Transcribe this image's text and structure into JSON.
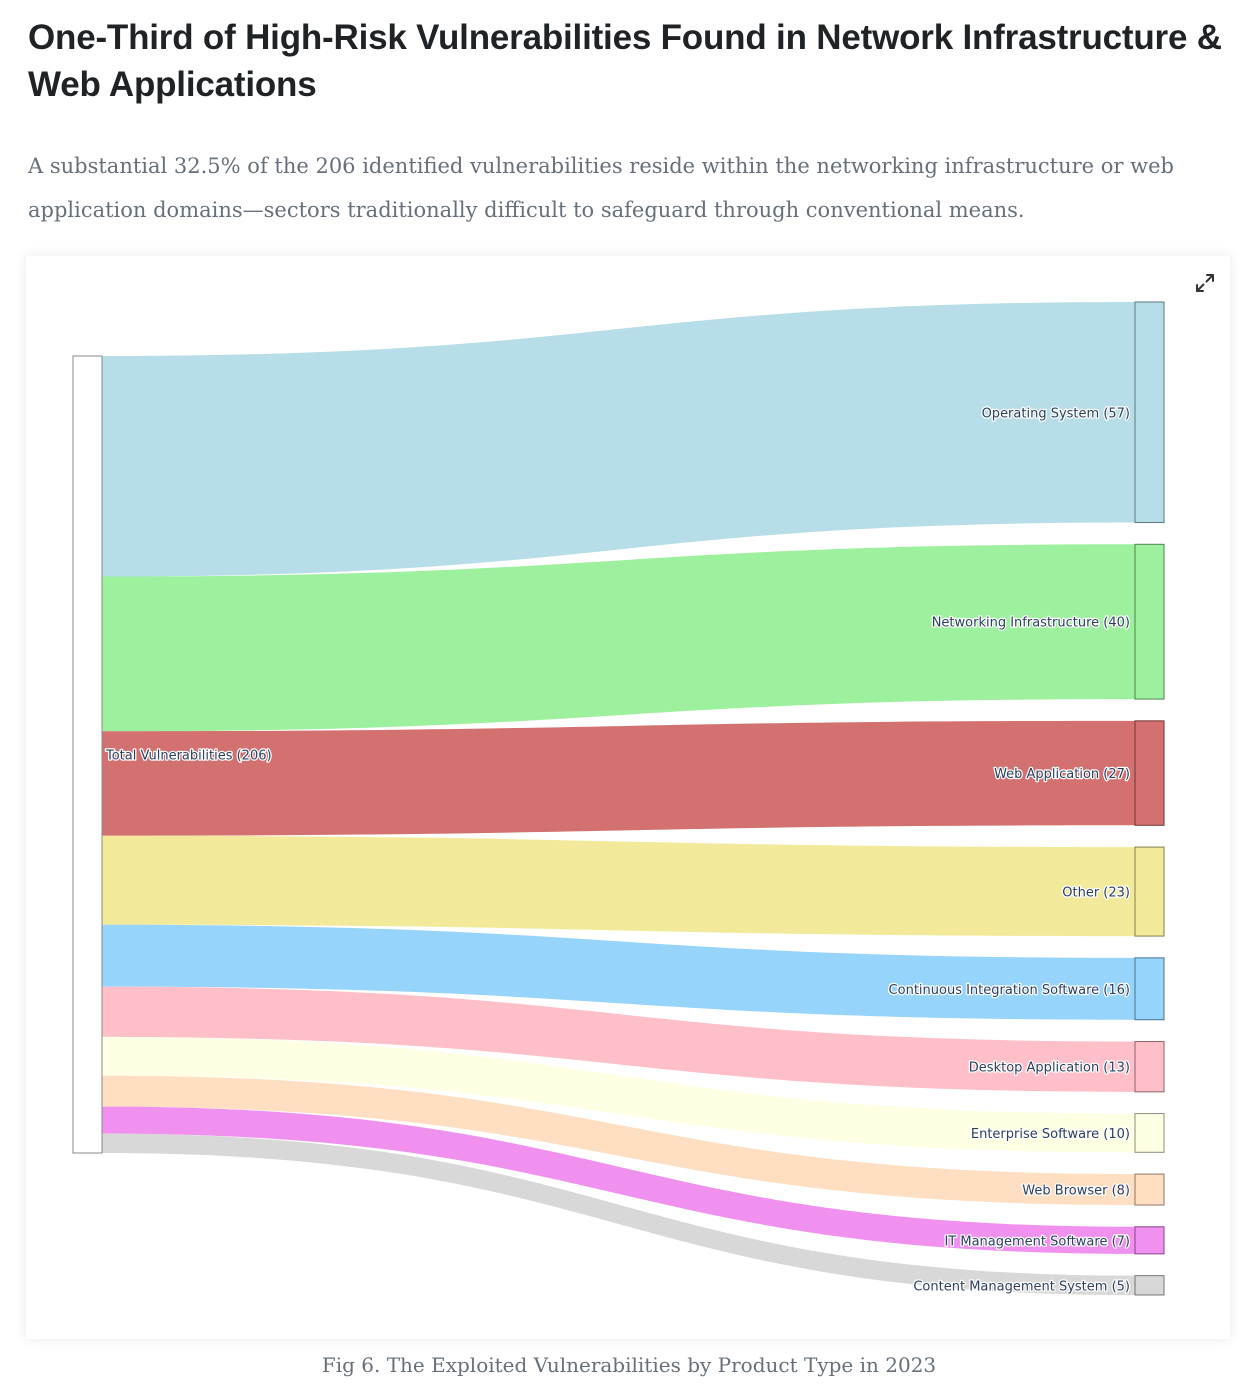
{
  "article": {
    "heading": "One-Third of High-Risk Vulnerabilities Found in Network Infrastructure & Web Applications",
    "lede": "A substantial 32.5% of the 206 identified vulnerabilities reside within the networking infrastructure or web application domains—sectors traditionally difficult to safeguard through conventional means.",
    "caption": "Fig 6. The Exploited Vulnerabilities by Product Type in 2023"
  },
  "toolbar": {
    "expand_icon": "expand-arrows-icon"
  },
  "chart_data": {
    "type": "sankey",
    "source": {
      "label": "Total Vulnerabilities (206)",
      "value": 206
    },
    "targets": [
      {
        "label": "Operating System (57)",
        "value": 57,
        "color": "#add8e6"
      },
      {
        "label": "Networking Infrastructure (40)",
        "value": 40,
        "color": "#90ee90"
      },
      {
        "label": "Web Application (27)",
        "value": 27,
        "color": "#cd5c5c"
      },
      {
        "label": "Other (23)",
        "value": 23,
        "color": "#f0e68c"
      },
      {
        "label": "Continuous Integration Software (16)",
        "value": 16,
        "color": "#87cefa"
      },
      {
        "label": "Desktop Application (13)",
        "value": 13,
        "color": "#ffb6c1"
      },
      {
        "label": "Enterprise Software (10)",
        "value": 10,
        "color": "#ffffe0"
      },
      {
        "label": "Web Browser (8)",
        "value": 8,
        "color": "#ffdab9"
      },
      {
        "label": "IT Management Software (7)",
        "value": 7,
        "color": "#ee82ee"
      },
      {
        "label": "Content Management System (5)",
        "value": 5,
        "color": "#d3d3d3"
      }
    ]
  }
}
